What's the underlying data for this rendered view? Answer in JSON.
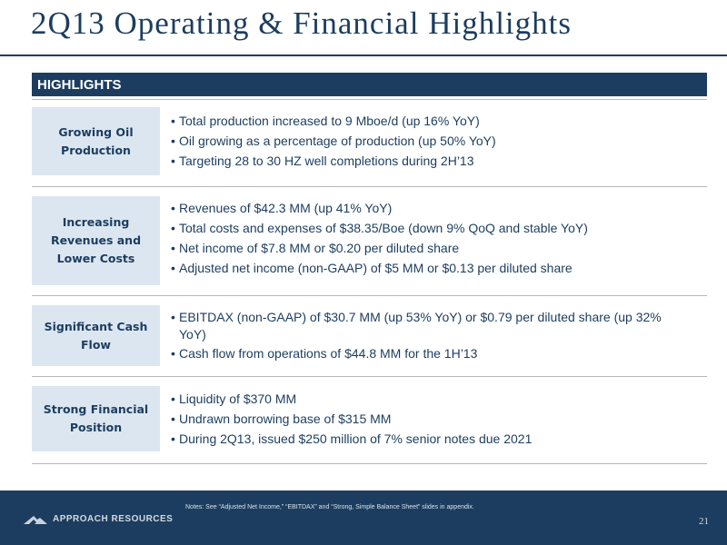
{
  "slide": {
    "title": "2Q13 Operating & Financial Highlights",
    "highlights_header": "HIGHLIGHTS"
  },
  "sections": [
    {
      "label": "Growing Oil Production",
      "bullets": [
        "Total production increased to 9 Mboe/d (up 16% YoY)",
        "Oil growing as a percentage of production (up 50% YoY)",
        "Targeting 28 to 30 HZ well completions during 2H’13"
      ]
    },
    {
      "label": "Increasing Revenues and Lower Costs",
      "bullets": [
        "Revenues of $42.3 MM (up 41% YoY)",
        "Total costs and expenses of $38.35/Boe (down 9% QoQ and stable YoY)",
        "Net income of $7.8 MM or $0.20 per diluted share",
        "Adjusted net income (non-GAAP) of $5 MM or $0.13 per diluted share"
      ]
    },
    {
      "label": "Significant Cash Flow",
      "bullets": [
        "EBITDAX (non-GAAP) of $30.7 MM (up 53% YoY) or $0.79 per diluted share (up 32% YoY)",
        "Cash flow from operations of $44.8 MM for the 1H’13"
      ]
    },
    {
      "label": "Strong Financial Position",
      "bullets": [
        "Liquidity of $370 MM",
        "Undrawn borrowing base of $315 MM",
        "During 2Q13, issued $250 million of 7% senior notes due 2021"
      ]
    }
  ],
  "footer": {
    "notes": "Notes: See “Adjusted Net Income,” “EBITDAX” and “Strong, Simple Balance Sheet” slides in appendix.",
    "company": "APPROACH RESOURCES",
    "logo_icon": "approach-mountain-logo-icon",
    "page_number": "21"
  }
}
